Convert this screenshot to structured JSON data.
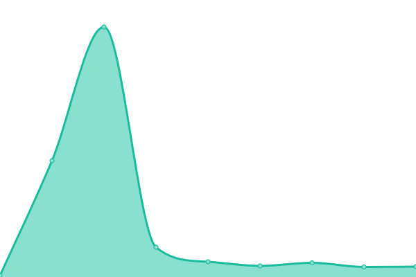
{
  "chart_data": {
    "type": "area",
    "title": "",
    "xlabel": "",
    "ylabel": "",
    "x": [
      0,
      1,
      2,
      3,
      4,
      5,
      6,
      7,
      8
    ],
    "series": [
      {
        "values": [
          2,
          168,
          361,
          43,
          22,
          16,
          20.5,
          14.5,
          15
        ]
      }
    ],
    "ylim": [
      0,
      400
    ],
    "grid": false,
    "axes_visible": false,
    "legend": "none",
    "curve": "smooth",
    "colors": {
      "line": "#1abc9c",
      "fill": "#8ae0cf",
      "marker_fill": "#8ae0cf"
    }
  }
}
